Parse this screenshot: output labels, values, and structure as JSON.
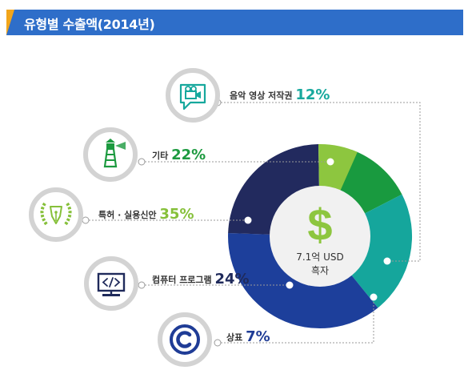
{
  "header": {
    "title": "유형별 수출액(2014년)"
  },
  "center": {
    "icon_text": "$",
    "line1": "7.1억 USD",
    "line2": "흑자"
  },
  "colors": {
    "header_bg": "#2e6ec9",
    "header_accent": "#f2a51a",
    "ring": "#d3d3d3",
    "label_text": "#333333"
  },
  "chart_data": {
    "type": "pie",
    "title": "유형별 수출액(2014년)",
    "slices": [
      {
        "label": "음악 영상 저작권",
        "value": 12,
        "display": "12%",
        "color": "#15a69c",
        "label_color": "#17a89d",
        "icon": "video-camera-icon"
      },
      {
        "label": "기타",
        "value": 22,
        "display": "22%",
        "color": "#199a3f",
        "label_color": "#1c9a3f",
        "icon": "lighthouse-icon"
      },
      {
        "label": "특허 · 실용신안",
        "value": 35,
        "display": "35%",
        "color": "#8dc63f",
        "label_color": "#86c03a",
        "icon": "laurel-pen-icon"
      },
      {
        "label": "컴퓨터 프로그램",
        "value": 24,
        "display": "24%",
        "color": "#222a5e",
        "label_color": "#1f2a5b",
        "icon": "code-monitor-icon"
      },
      {
        "label": "상표",
        "value": 7,
        "display": "7%",
        "color": "#1d3f9b",
        "label_color": "#1f3c96",
        "icon": "copyright-icon"
      }
    ]
  }
}
